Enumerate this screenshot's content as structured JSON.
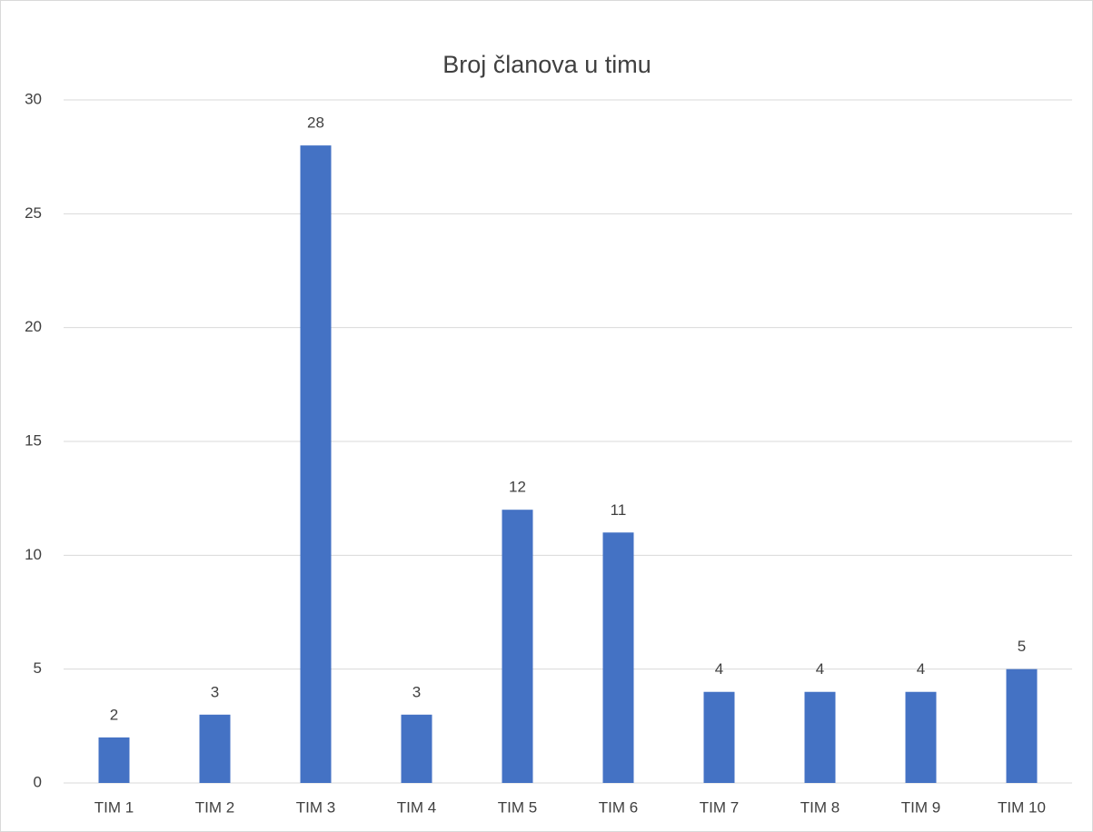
{
  "chart_data": {
    "type": "bar",
    "title": "Broj članova u timu",
    "categories": [
      "TIM 1",
      "TIM 2",
      "TIM 3",
      "TIM 4",
      "TIM 5",
      "TIM 6",
      "TIM 7",
      "TIM 8",
      "TIM 9",
      "TIM 10"
    ],
    "values": [
      2,
      3,
      28,
      3,
      12,
      11,
      4,
      4,
      4,
      5
    ],
    "color": "#4472c4",
    "ylim": [
      0,
      30
    ],
    "yticks": [
      0,
      5,
      10,
      15,
      20,
      25,
      30
    ],
    "grid": true
  }
}
